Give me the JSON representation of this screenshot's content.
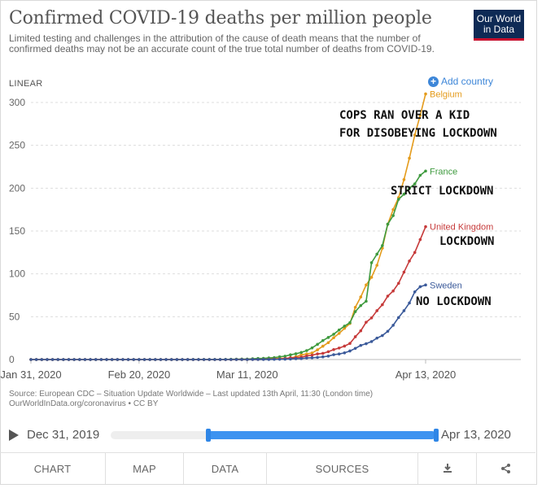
{
  "header": {
    "title": "Confirmed COVID-19 deaths per million people",
    "subtitle": "Limited testing and challenges in the attribution of the cause of death means that the number of confirmed deaths may not be an accurate count of the true total number of deaths from COVID-19.",
    "logo_line1": "Our World",
    "logo_line2": "in Data",
    "scale_label": "LINEAR",
    "add_country": "Add country"
  },
  "annotations": {
    "belgium": "COPS RAN OVER A KID\nFOR DISOBEYING LOCKDOWN",
    "france": "STRICT LOCKDOWN",
    "uk": "LOCKDOWN",
    "sweden": "NO LOCKDOWN"
  },
  "footer": {
    "source": "Source: European CDC – Situation Update Worldwide – Last updated 13th April, 11:30 (London time)",
    "source2": "OurWorldInData.org/coronavirus • CC BY"
  },
  "timeline": {
    "start": "Dec 31, 2019",
    "end": "Apr 13, 2020",
    "range_start_fraction": 0.3,
    "range_end_fraction": 1.0
  },
  "tabs": [
    "CHART",
    "MAP",
    "DATA",
    "SOURCES"
  ],
  "colors": {
    "belgium": "#e49b1b",
    "france": "#3e9a3e",
    "uk": "#c63a3a",
    "sweden": "#3b5a9a",
    "accent": "#3d86d8"
  },
  "chart_data": {
    "type": "line",
    "x": [
      "Jan 31",
      "Feb 1",
      "Feb 2",
      "Feb 3",
      "Feb 4",
      "Feb 5",
      "Feb 6",
      "Feb 7",
      "Feb 8",
      "Feb 9",
      "Feb 10",
      "Feb 11",
      "Feb 12",
      "Feb 13",
      "Feb 14",
      "Feb 15",
      "Feb 16",
      "Feb 17",
      "Feb 18",
      "Feb 19",
      "Feb 20",
      "Feb 21",
      "Feb 22",
      "Feb 23",
      "Feb 24",
      "Feb 25",
      "Feb 26",
      "Feb 27",
      "Feb 28",
      "Feb 29",
      "Mar 1",
      "Mar 2",
      "Mar 3",
      "Mar 4",
      "Mar 5",
      "Mar 6",
      "Mar 7",
      "Mar 8",
      "Mar 9",
      "Mar 10",
      "Mar 11",
      "Mar 12",
      "Mar 13",
      "Mar 14",
      "Mar 15",
      "Mar 16",
      "Mar 17",
      "Mar 18",
      "Mar 19",
      "Mar 20",
      "Mar 21",
      "Mar 22",
      "Mar 23",
      "Mar 24",
      "Mar 25",
      "Mar 26",
      "Mar 27",
      "Mar 28",
      "Mar 29",
      "Mar 30",
      "Mar 31",
      "Apr 1",
      "Apr 2",
      "Apr 3",
      "Apr 4",
      "Apr 5",
      "Apr 6",
      "Apr 7",
      "Apr 8",
      "Apr 9",
      "Apr 10",
      "Apr 11",
      "Apr 12",
      "Apr 13"
    ],
    "x_ticks": [
      "Jan 31, 2020",
      "Feb 20, 2020",
      "Mar 11, 2020",
      "Apr 13, 2020"
    ],
    "ylim": [
      0,
      300
    ],
    "y_ticks": [
      0,
      50,
      100,
      150,
      200,
      250,
      300
    ],
    "grid": true,
    "series": [
      {
        "name": "Belgium",
        "key": "belgium",
        "values": [
          0,
          0,
          0,
          0,
          0,
          0,
          0,
          0,
          0,
          0,
          0,
          0,
          0,
          0,
          0,
          0,
          0,
          0,
          0,
          0,
          0,
          0,
          0,
          0,
          0,
          0,
          0,
          0,
          0,
          0,
          0,
          0,
          0,
          0,
          0,
          0,
          0,
          0,
          0,
          0,
          0,
          0.3,
          0.3,
          0.3,
          0.9,
          0.9,
          1.4,
          1.4,
          1.9,
          3.2,
          5.5,
          6.5,
          7.7,
          11.3,
          15.6,
          19.7,
          25.5,
          30.5,
          36.4,
          42,
          61,
          73,
          87,
          96,
          110,
          130,
          158,
          175,
          189,
          210,
          235,
          262,
          285,
          310
        ]
      },
      {
        "name": "France",
        "key": "france",
        "values": [
          0,
          0,
          0,
          0,
          0,
          0,
          0,
          0,
          0,
          0,
          0,
          0,
          0,
          0,
          0,
          0,
          0,
          0,
          0,
          0,
          0,
          0,
          0,
          0,
          0,
          0,
          0,
          0,
          0,
          0,
          0.1,
          0.1,
          0.1,
          0.1,
          0.1,
          0.1,
          0.2,
          0.3,
          0.4,
          0.5,
          0.5,
          0.9,
          1.2,
          1.4,
          1.9,
          2.2,
          3.2,
          3.9,
          5.5,
          6.7,
          8.3,
          10.4,
          13.6,
          17.7,
          22.1,
          25.8,
          29.5,
          34.5,
          39,
          43,
          56,
          63,
          68,
          113,
          123,
          133,
          158,
          168,
          187,
          193,
          200,
          205,
          215,
          220
        ]
      },
      {
        "name": "United Kingdom",
        "key": "uk",
        "values": [
          0,
          0,
          0,
          0,
          0,
          0,
          0,
          0,
          0,
          0,
          0,
          0,
          0,
          0,
          0,
          0,
          0,
          0,
          0,
          0,
          0,
          0,
          0,
          0,
          0,
          0,
          0,
          0,
          0,
          0,
          0,
          0,
          0,
          0,
          0,
          0,
          0,
          0,
          0.1,
          0.1,
          0.1,
          0.1,
          0.1,
          0.2,
          0.3,
          0.5,
          0.7,
          1.1,
          2.1,
          2.2,
          2.8,
          4.2,
          5.1,
          6.6,
          7.2,
          9.1,
          11.6,
          13.4,
          15.7,
          18.8,
          26.6,
          33.5,
          43.5,
          48.6,
          57,
          64,
          74,
          80,
          89,
          102,
          115,
          125,
          140,
          155
        ]
      },
      {
        "name": "Sweden",
        "key": "sweden",
        "values": [
          0,
          0,
          0,
          0,
          0,
          0,
          0,
          0,
          0,
          0,
          0,
          0,
          0,
          0,
          0,
          0,
          0,
          0,
          0,
          0,
          0,
          0,
          0,
          0,
          0,
          0,
          0,
          0,
          0,
          0,
          0,
          0,
          0,
          0,
          0,
          0,
          0,
          0,
          0,
          0,
          0,
          0.1,
          0.1,
          0.1,
          0.1,
          0.2,
          0.3,
          0.4,
          0.6,
          1,
          1.1,
          1.8,
          2.1,
          2.5,
          3.1,
          4,
          5.7,
          6.5,
          7.8,
          10,
          13,
          16.5,
          18.5,
          21,
          25,
          28,
          33,
          40,
          49,
          57,
          66,
          79,
          85,
          87
        ]
      }
    ]
  }
}
